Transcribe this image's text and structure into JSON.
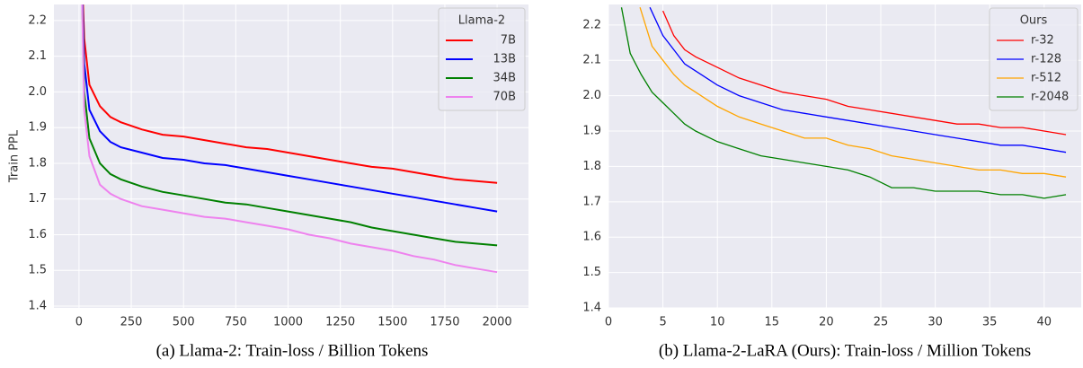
{
  "chart_data": [
    {
      "type": "line",
      "caption": "(a) Llama-2: Train-loss / Billion Tokens",
      "ylabel": "Train PPL",
      "legend_title": "Llama-2",
      "legend": "upper right",
      "grid": true,
      "xlim": [
        -120,
        2150
      ],
      "xticks": [
        0,
        250,
        500,
        750,
        1000,
        1250,
        1500,
        1750,
        2000
      ],
      "ylim": [
        1.395,
        2.245
      ],
      "yticks": [
        1.4,
        1.5,
        1.6,
        1.7,
        1.8,
        1.9,
        {
          "value": 2,
          "label": "2.0"
        },
        2.1,
        2.2
      ],
      "series": [
        {
          "name": "7B",
          "color": "#ff0000",
          "x": [
            10,
            25,
            50,
            100,
            150,
            200,
            300,
            400,
            500,
            600,
            700,
            800,
            900,
            1000,
            1100,
            1200,
            1300,
            1400,
            1500,
            1600,
            1700,
            1800,
            1900,
            2000
          ],
          "values": [
            2.4,
            2.15,
            2.02,
            1.96,
            1.93,
            1.915,
            1.895,
            1.88,
            1.875,
            1.865,
            1.855,
            1.845,
            1.84,
            1.83,
            1.82,
            1.81,
            1.8,
            1.79,
            1.785,
            1.775,
            1.765,
            1.755,
            1.75,
            1.745
          ]
        },
        {
          "name": "13B",
          "color": "#0000ff",
          "x": [
            10,
            25,
            50,
            100,
            150,
            200,
            300,
            400,
            500,
            600,
            700,
            800,
            900,
            1000,
            1100,
            1200,
            1300,
            1400,
            1500,
            1600,
            1700,
            1800,
            1900,
            2000
          ],
          "values": [
            2.4,
            2.08,
            1.95,
            1.89,
            1.86,
            1.845,
            1.83,
            1.815,
            1.81,
            1.8,
            1.795,
            1.785,
            1.775,
            1.765,
            1.755,
            1.745,
            1.735,
            1.725,
            1.715,
            1.705,
            1.695,
            1.685,
            1.675,
            1.665
          ]
        },
        {
          "name": "34B",
          "color": "#008000",
          "x": [
            10,
            25,
            50,
            100,
            150,
            200,
            300,
            400,
            500,
            600,
            700,
            800,
            900,
            1000,
            1100,
            1200,
            1300,
            1400,
            1500,
            1600,
            1700,
            1800,
            1900,
            2000
          ],
          "values": [
            2.4,
            2.0,
            1.87,
            1.8,
            1.77,
            1.755,
            1.735,
            1.72,
            1.71,
            1.7,
            1.69,
            1.685,
            1.675,
            1.665,
            1.655,
            1.645,
            1.635,
            1.62,
            1.61,
            1.6,
            1.59,
            1.58,
            1.575,
            1.57
          ]
        },
        {
          "name": "70B",
          "color": "#ee82ee",
          "x": [
            10,
            25,
            50,
            100,
            150,
            200,
            300,
            400,
            500,
            600,
            700,
            800,
            900,
            1000,
            1100,
            1200,
            1300,
            1400,
            1500,
            1600,
            1700,
            1800,
            1900,
            2000
          ],
          "values": [
            2.4,
            1.95,
            1.82,
            1.74,
            1.715,
            1.7,
            1.68,
            1.67,
            1.66,
            1.65,
            1.645,
            1.635,
            1.625,
            1.615,
            1.6,
            1.59,
            1.575,
            1.565,
            1.555,
            1.54,
            1.53,
            1.515,
            1.505,
            1.495
          ]
        }
      ]
    },
    {
      "type": "line",
      "caption": "(b) Llama-2-LaRA (Ours): Train-loss / Million Tokens",
      "legend_title": "Ours",
      "legend": "upper right",
      "grid": true,
      "xlim": [
        0,
        43.4
      ],
      "xticks": [
        0,
        5,
        10,
        15,
        20,
        25,
        30,
        35,
        40
      ],
      "ylim": [
        1.4,
        2.258
      ],
      "yticks": [
        1.4,
        1.5,
        1.6,
        1.7,
        1.8,
        1.9,
        {
          "value": 2,
          "label": "2.0"
        },
        2.1,
        2.2
      ],
      "series": [
        {
          "name": "r-32",
          "color": "#ff0000",
          "x": [
            5,
            6,
            7,
            8,
            10,
            12,
            14,
            16,
            18,
            20,
            22,
            24,
            26,
            28,
            30,
            32,
            34,
            36,
            38,
            40,
            42
          ],
          "values": [
            2.24,
            2.17,
            2.13,
            2.11,
            2.08,
            2.05,
            2.03,
            2.01,
            2.0,
            1.99,
            1.97,
            1.96,
            1.95,
            1.94,
            1.93,
            1.92,
            1.92,
            1.91,
            1.91,
            1.9,
            1.89
          ]
        },
        {
          "name": "r-128",
          "color": "#0000ff",
          "x": [
            3.8,
            5,
            6,
            7,
            8,
            10,
            12,
            14,
            16,
            18,
            20,
            22,
            24,
            26,
            28,
            30,
            32,
            34,
            36,
            38,
            40,
            42
          ],
          "values": [
            2.25,
            2.17,
            2.13,
            2.09,
            2.07,
            2.03,
            2.0,
            1.98,
            1.96,
            1.95,
            1.94,
            1.93,
            1.92,
            1.91,
            1.9,
            1.89,
            1.88,
            1.87,
            1.86,
            1.86,
            1.85,
            1.84
          ]
        },
        {
          "name": "r-512",
          "color": "#ffa500",
          "x": [
            2.9,
            4,
            5,
            6,
            7,
            8,
            10,
            12,
            14,
            16,
            18,
            20,
            22,
            24,
            26,
            28,
            30,
            32,
            34,
            36,
            38,
            40,
            42
          ],
          "values": [
            2.25,
            2.14,
            2.1,
            2.06,
            2.03,
            2.01,
            1.97,
            1.94,
            1.92,
            1.9,
            1.88,
            1.88,
            1.86,
            1.85,
            1.83,
            1.82,
            1.81,
            1.8,
            1.79,
            1.79,
            1.78,
            1.78,
            1.77
          ]
        },
        {
          "name": "r-2048",
          "color": "#008000",
          "x": [
            1.2,
            2,
            3,
            4,
            5,
            6,
            7,
            8,
            10,
            12,
            14,
            16,
            18,
            20,
            22,
            24,
            26,
            28,
            30,
            32,
            34,
            36,
            38,
            40,
            42
          ],
          "values": [
            2.25,
            2.12,
            2.06,
            2.01,
            1.98,
            1.95,
            1.92,
            1.9,
            1.87,
            1.85,
            1.83,
            1.82,
            1.81,
            1.8,
            1.79,
            1.77,
            1.74,
            1.74,
            1.73,
            1.73,
            1.73,
            1.72,
            1.72,
            1.71,
            1.72
          ]
        }
      ]
    }
  ]
}
